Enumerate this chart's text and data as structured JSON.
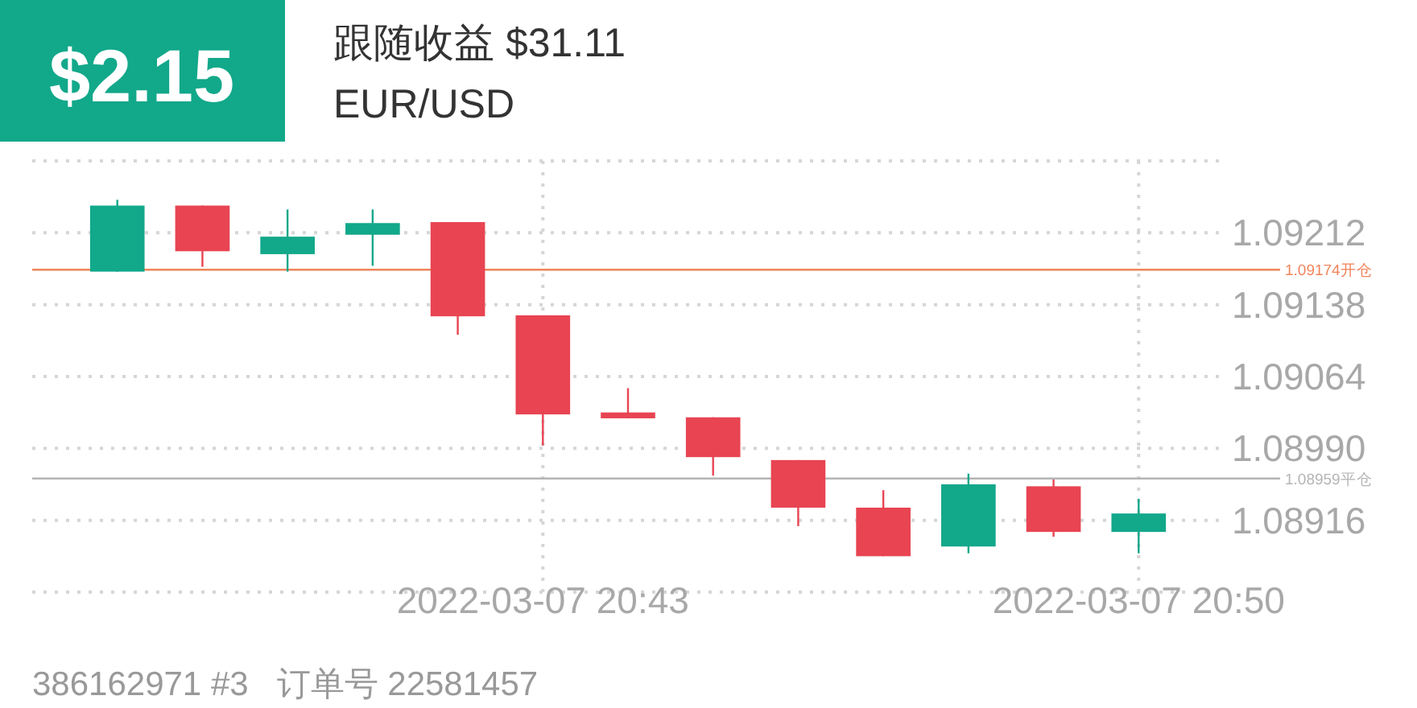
{
  "chart_data": {
    "type": "candlestick",
    "title": "跟随收益 $31.11",
    "subtitle": "EUR/USD",
    "annotations": [
      "$2.15",
      "386162971 #3   订单号 22581457"
    ],
    "x": [
      "2022-03-07T20:38",
      "2022-03-07T20:39",
      "2022-03-07T20:40",
      "2022-03-07T20:41",
      "2022-03-07T20:42",
      "2022-03-07T20:43",
      "2022-03-07T20:44",
      "2022-03-07T20:45",
      "2022-03-07T20:46",
      "2022-03-07T20:47",
      "2022-03-07T20:48",
      "2022-03-07T20:49",
      "2022-03-07T20:50"
    ],
    "ohlc": [
      [
        1.09172,
        1.09246,
        1.09172,
        1.0924
      ],
      [
        1.0924,
        1.0924,
        1.09177,
        1.09193
      ],
      [
        1.0919,
        1.09236,
        1.09172,
        1.09208
      ],
      [
        1.0921,
        1.09236,
        1.09178,
        1.09222
      ],
      [
        1.09223,
        1.09223,
        1.09107,
        1.09126
      ],
      [
        1.09127,
        1.09127,
        1.08993,
        1.09025
      ],
      [
        1.09027,
        1.09052,
        1.09021,
        1.09021
      ],
      [
        1.09022,
        1.09022,
        1.08962,
        1.08981
      ],
      [
        1.08978,
        1.08978,
        1.0891,
        1.08929
      ],
      [
        1.08929,
        1.08947,
        1.08879,
        1.08879
      ],
      [
        1.08889,
        1.08964,
        1.08882,
        1.08953
      ],
      [
        1.08951,
        1.08958,
        1.08899,
        1.08904
      ],
      [
        1.08904,
        1.08938,
        1.08882,
        1.08923
      ]
    ],
    "colors": [
      "#12a88a",
      "#e84452",
      "#12a88a",
      "#12a88a",
      "#e84452",
      "#e84452",
      "#e84452",
      "#e84452",
      "#e84452",
      "#e84452",
      "#12a88a",
      "#e84452",
      "#12a88a"
    ],
    "xlim": [
      "2022-03-07T20:37",
      "2022-03-07T20:51"
    ],
    "xticks": [
      {
        "value": "2022-03-07T20:43",
        "label": "2022-03-07 20:43"
      },
      {
        "value": "2022-03-07T20:50",
        "label": "2022-03-07 20:50"
      }
    ],
    "ylim": [
      1.08842,
      1.09286
    ],
    "yticks": [
      {
        "value": 1.08842,
        "label": null
      },
      {
        "value": 1.08916,
        "label": "1.08916"
      },
      {
        "value": 1.0899,
        "label": "1.08990"
      },
      {
        "value": 1.09064,
        "label": "1.09064"
      },
      {
        "value": 1.09138,
        "label": "1.09138"
      },
      {
        "value": 1.09212,
        "label": "1.09212"
      },
      {
        "value": 1.09286,
        "label": null
      }
    ],
    "ref_lines": [
      {
        "axis": "y",
        "value": 1.09174,
        "label": "1.09174开仓",
        "color": "#f0845a"
      },
      {
        "axis": "y",
        "value": 1.08959,
        "label": "1.08959平仓",
        "color": "#b4b4b4"
      }
    ],
    "grid": true
  }
}
